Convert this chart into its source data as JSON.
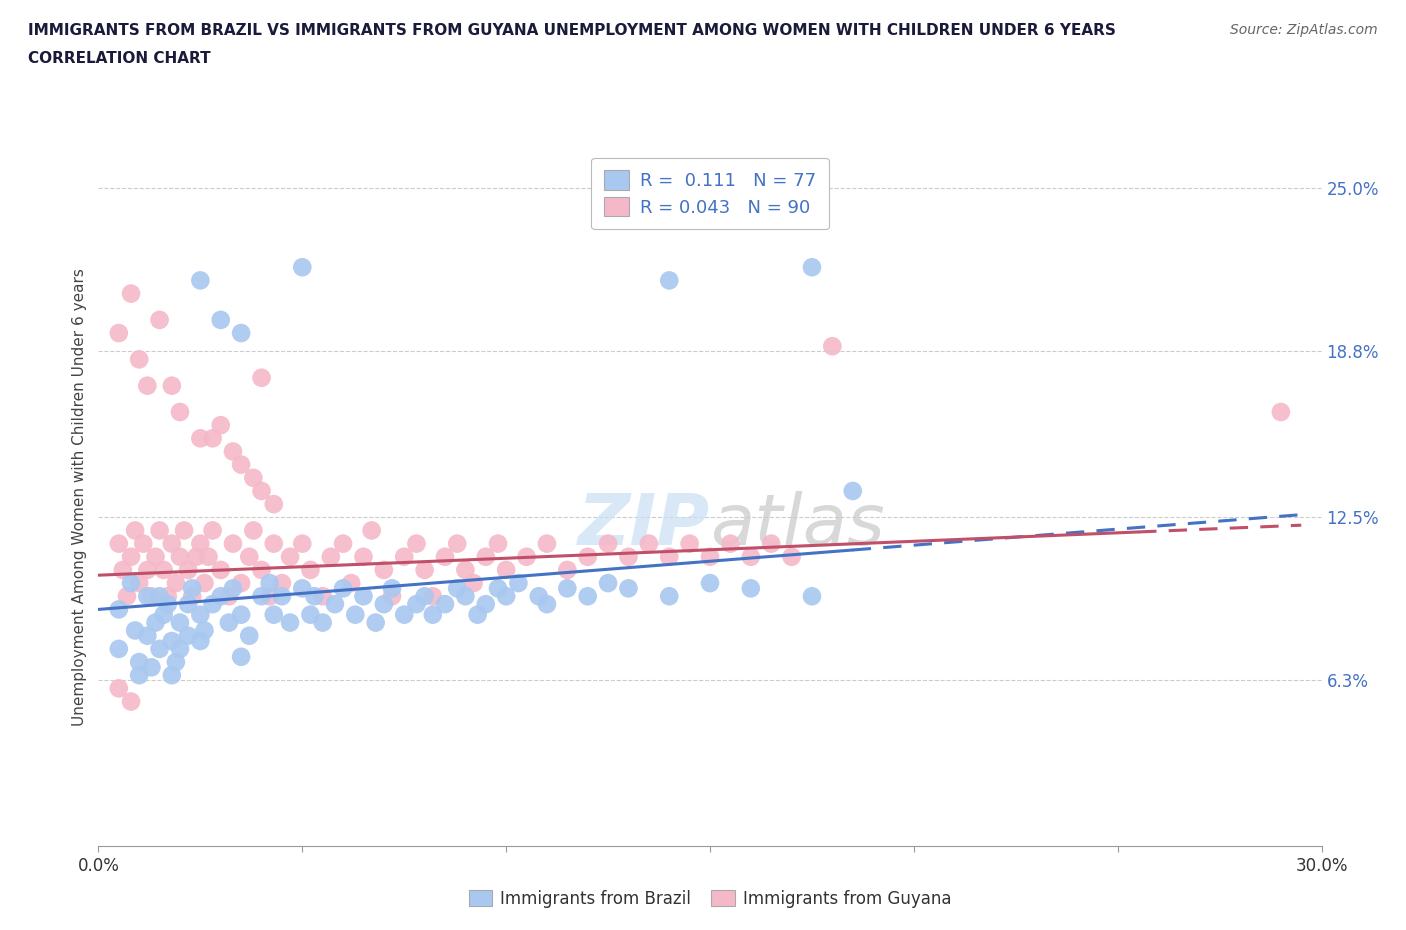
{
  "title_line1": "IMMIGRANTS FROM BRAZIL VS IMMIGRANTS FROM GUYANA UNEMPLOYMENT AMONG WOMEN WITH CHILDREN UNDER 6 YEARS",
  "title_line2": "CORRELATION CHART",
  "source": "Source: ZipAtlas.com",
  "ylabel": "Unemployment Among Women with Children Under 6 years",
  "xlim": [
    0.0,
    0.3
  ],
  "ylim": [
    0.0,
    0.265
  ],
  "ytick_positions": [
    0.063,
    0.125,
    0.188,
    0.25
  ],
  "ytick_labels": [
    "6.3%",
    "12.5%",
    "18.8%",
    "25.0%"
  ],
  "brazil_color": "#a8c8f0",
  "guyana_color": "#f5b8c8",
  "brazil_line_color": "#4472c4",
  "guyana_line_color": "#c0506a",
  "legend_text_color": "#4472c4",
  "brazil_R": 0.111,
  "brazil_N": 77,
  "guyana_R": 0.043,
  "guyana_N": 90,
  "legend_label_brazil": "Immigrants from Brazil",
  "legend_label_guyana": "Immigrants from Guyana",
  "brazil_x": [
    0.005,
    0.005,
    0.008,
    0.009,
    0.01,
    0.01,
    0.012,
    0.012,
    0.013,
    0.014,
    0.015,
    0.015,
    0.016,
    0.017,
    0.018,
    0.018,
    0.019,
    0.02,
    0.02,
    0.022,
    0.022,
    0.023,
    0.025,
    0.025,
    0.026,
    0.028,
    0.03,
    0.032,
    0.033,
    0.035,
    0.035,
    0.037,
    0.04,
    0.042,
    0.043,
    0.045,
    0.047,
    0.05,
    0.052,
    0.053,
    0.055,
    0.058,
    0.06,
    0.063,
    0.065,
    0.068,
    0.07,
    0.072,
    0.075,
    0.078,
    0.08,
    0.082,
    0.085,
    0.088,
    0.09,
    0.093,
    0.095,
    0.098,
    0.1,
    0.103,
    0.108,
    0.11,
    0.115,
    0.12,
    0.125,
    0.13,
    0.14,
    0.15,
    0.16,
    0.175,
    0.025,
    0.03,
    0.035,
    0.05,
    0.185,
    0.14,
    0.175
  ],
  "brazil_y": [
    0.09,
    0.075,
    0.1,
    0.082,
    0.07,
    0.065,
    0.08,
    0.095,
    0.068,
    0.085,
    0.095,
    0.075,
    0.088,
    0.092,
    0.078,
    0.065,
    0.07,
    0.085,
    0.075,
    0.08,
    0.092,
    0.098,
    0.088,
    0.078,
    0.082,
    0.092,
    0.095,
    0.085,
    0.098,
    0.088,
    0.072,
    0.08,
    0.095,
    0.1,
    0.088,
    0.095,
    0.085,
    0.098,
    0.088,
    0.095,
    0.085,
    0.092,
    0.098,
    0.088,
    0.095,
    0.085,
    0.092,
    0.098,
    0.088,
    0.092,
    0.095,
    0.088,
    0.092,
    0.098,
    0.095,
    0.088,
    0.092,
    0.098,
    0.095,
    0.1,
    0.095,
    0.092,
    0.098,
    0.095,
    0.1,
    0.098,
    0.095,
    0.1,
    0.098,
    0.095,
    0.215,
    0.2,
    0.195,
    0.22,
    0.135,
    0.215,
    0.22
  ],
  "guyana_x": [
    0.005,
    0.006,
    0.007,
    0.008,
    0.009,
    0.01,
    0.011,
    0.012,
    0.013,
    0.014,
    0.015,
    0.016,
    0.017,
    0.018,
    0.019,
    0.02,
    0.021,
    0.022,
    0.023,
    0.024,
    0.025,
    0.026,
    0.027,
    0.028,
    0.03,
    0.032,
    0.033,
    0.035,
    0.037,
    0.038,
    0.04,
    0.042,
    0.043,
    0.045,
    0.047,
    0.05,
    0.052,
    0.055,
    0.057,
    0.06,
    0.062,
    0.065,
    0.067,
    0.07,
    0.072,
    0.075,
    0.078,
    0.08,
    0.082,
    0.085,
    0.088,
    0.09,
    0.092,
    0.095,
    0.098,
    0.1,
    0.105,
    0.11,
    0.115,
    0.12,
    0.125,
    0.13,
    0.135,
    0.14,
    0.145,
    0.15,
    0.155,
    0.16,
    0.165,
    0.17,
    0.005,
    0.008,
    0.01,
    0.012,
    0.015,
    0.018,
    0.02,
    0.025,
    0.028,
    0.03,
    0.033,
    0.035,
    0.038,
    0.04,
    0.043,
    0.29,
    0.18,
    0.04,
    0.005,
    0.008
  ],
  "guyana_y": [
    0.115,
    0.105,
    0.095,
    0.11,
    0.12,
    0.1,
    0.115,
    0.105,
    0.095,
    0.11,
    0.12,
    0.105,
    0.095,
    0.115,
    0.1,
    0.11,
    0.12,
    0.105,
    0.095,
    0.11,
    0.115,
    0.1,
    0.11,
    0.12,
    0.105,
    0.095,
    0.115,
    0.1,
    0.11,
    0.12,
    0.105,
    0.095,
    0.115,
    0.1,
    0.11,
    0.115,
    0.105,
    0.095,
    0.11,
    0.115,
    0.1,
    0.11,
    0.12,
    0.105,
    0.095,
    0.11,
    0.115,
    0.105,
    0.095,
    0.11,
    0.115,
    0.105,
    0.1,
    0.11,
    0.115,
    0.105,
    0.11,
    0.115,
    0.105,
    0.11,
    0.115,
    0.11,
    0.115,
    0.11,
    0.115,
    0.11,
    0.115,
    0.11,
    0.115,
    0.11,
    0.195,
    0.21,
    0.185,
    0.175,
    0.2,
    0.175,
    0.165,
    0.155,
    0.155,
    0.16,
    0.15,
    0.145,
    0.14,
    0.135,
    0.13,
    0.165,
    0.19,
    0.178,
    0.06,
    0.055
  ],
  "brazil_line_x0": 0.0,
  "brazil_line_x_split": 0.185,
  "brazil_line_x1": 0.295,
  "brazil_line_y0": 0.09,
  "brazil_line_y1": 0.126,
  "guyana_line_x0": 0.0,
  "guyana_line_x_split": 0.255,
  "guyana_line_x1": 0.295,
  "guyana_line_y0": 0.103,
  "guyana_line_y1": 0.122
}
